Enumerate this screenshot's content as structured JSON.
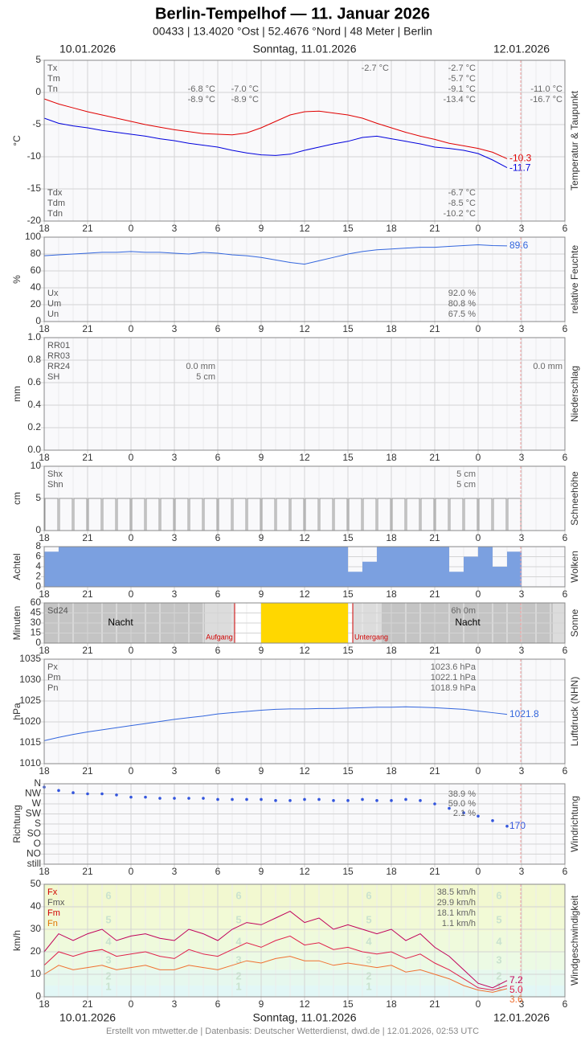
{
  "header": {
    "title": "Berlin-Tempelhof  —  11. Januar 2026",
    "subtitle": "00433  |  13.4020 °Ost  |  52.4676 °Nord  |  48 Meter  |  Berlin",
    "dates": [
      "10.01.2026",
      "Sonntag, 11.01.2026",
      "12.01.2026"
    ]
  },
  "footer": "Erstellt von mtwetter.de | Datenbasis: Deutscher Wetterdienst, dwd.de | 12.01.2026, 02:53 UTC",
  "x_axis": {
    "xlim": [
      0,
      36
    ],
    "xticks": [
      {
        "value": 0,
        "label": "18"
      },
      {
        "value": 3,
        "label": "21"
      },
      {
        "value": 6,
        "label": "0"
      },
      {
        "value": 9,
        "label": "3"
      },
      {
        "value": 12,
        "label": "6"
      },
      {
        "value": 15,
        "label": "9"
      },
      {
        "value": 18,
        "label": "12"
      },
      {
        "value": 21,
        "label": "15"
      },
      {
        "value": 24,
        "label": "18"
      },
      {
        "value": 27,
        "label": "21"
      },
      {
        "value": 30,
        "label": "0"
      },
      {
        "value": 33,
        "label": "3"
      },
      {
        "value": 36,
        "label": "6"
      }
    ]
  },
  "chart_data": [
    {
      "type": "line",
      "ylabel": "°C",
      "side_title": "Temperatur & Taupunkt",
      "ylim": [
        -20,
        5
      ],
      "yticks": [
        -20,
        -15,
        -10,
        -5,
        0,
        5
      ],
      "x": [
        0,
        1,
        2,
        3,
        4,
        5,
        6,
        7,
        8,
        9,
        10,
        11,
        12,
        13,
        14,
        15,
        16,
        17,
        18,
        19,
        20,
        21,
        22,
        23,
        24,
        25,
        26,
        27,
        28,
        29,
        30,
        31,
        32
      ],
      "series": [
        {
          "color": "#e00000",
          "values": [
            -1.0,
            -1.8,
            -2.4,
            -3.0,
            -3.5,
            -4.0,
            -4.5,
            -5.0,
            -5.4,
            -5.8,
            -6.1,
            -6.4,
            -6.5,
            -6.6,
            -6.3,
            -5.5,
            -4.5,
            -3.5,
            -3.0,
            -2.9,
            -3.2,
            -3.5,
            -4.0,
            -4.8,
            -5.5,
            -6.2,
            -6.8,
            -7.3,
            -7.9,
            -8.3,
            -8.7,
            -9.3,
            -10.3
          ]
        },
        {
          "color": "#0000dd",
          "values": [
            -4.0,
            -4.8,
            -5.2,
            -5.5,
            -5.9,
            -6.2,
            -6.5,
            -6.8,
            -7.2,
            -7.5,
            -7.9,
            -8.2,
            -8.5,
            -9.0,
            -9.4,
            -9.7,
            -9.8,
            -9.6,
            -9.0,
            -8.5,
            -8.0,
            -7.6,
            -7.0,
            -6.8,
            -7.2,
            -7.6,
            -8.0,
            -8.5,
            -8.7,
            -9.0,
            -9.5,
            -10.5,
            -11.7
          ]
        }
      ],
      "labels": [
        "Tx",
        "Tm",
        "Tn",
        "Tdx",
        "Tdm",
        "Tdn"
      ],
      "notes": [
        "-2.7 °C",
        "-2.7 °C",
        "-5.7 °C",
        "-6.8 °C",
        "-7.0 °C",
        "-9.1 °C",
        "-11.0 °C",
        "-8.9 °C",
        "-8.9 °C",
        "-13.4 °C",
        "-16.7 °C",
        "-6.7 °C",
        "-8.5 °C",
        "-10.2 °C"
      ]
    },
    {
      "type": "line",
      "ylabel": "%",
      "side_title": "relative Feuchte",
      "ylim": [
        0,
        100
      ],
      "yticks": [
        0,
        20,
        40,
        60,
        80,
        100
      ],
      "x": [
        0,
        1,
        2,
        3,
        4,
        5,
        6,
        7,
        8,
        9,
        10,
        11,
        12,
        13,
        14,
        15,
        16,
        17,
        18,
        19,
        20,
        21,
        22,
        23,
        24,
        25,
        26,
        27,
        28,
        29,
        30,
        31,
        32
      ],
      "series": [
        {
          "color": "#3366dd",
          "values": [
            78,
            79,
            80,
            81,
            82,
            82,
            83,
            82,
            82,
            81,
            80,
            82,
            81,
            79,
            78,
            76,
            73,
            70,
            68,
            72,
            76,
            80,
            83,
            85,
            86,
            87,
            88,
            88,
            89,
            90,
            91,
            90,
            89.6
          ]
        }
      ],
      "labels": [
        "Ux",
        "Um",
        "Un"
      ],
      "notes": [
        "92.0 %",
        "80.8 %",
        "67.5 %"
      ]
    },
    {
      "type": "bar",
      "ylabel": "mm",
      "side_title": "Niederschlag",
      "ylim": [
        0,
        1
      ],
      "yticks": [
        {
          "value": 0,
          "label": "0.0"
        },
        0.2,
        0.4,
        0.6,
        0.8,
        {
          "value": 1,
          "label": "1.0"
        }
      ],
      "labels": [
        "RR01",
        "RR03",
        "RR24",
        "SH"
      ],
      "notes": [
        "0.0 mm",
        "5 cm",
        "0.0 mm"
      ]
    },
    {
      "type": "bar",
      "ylabel": "cm",
      "side_title": "Schneehöhe",
      "ylim": [
        0,
        10
      ],
      "yticks": [
        0,
        5,
        10
      ],
      "x": [
        0,
        1,
        2,
        3,
        4,
        5,
        6,
        7,
        8,
        9,
        10,
        11,
        12,
        13,
        14,
        15,
        16,
        17,
        18,
        19,
        20,
        21,
        22,
        23,
        24,
        25,
        26,
        27,
        28,
        29,
        30,
        31,
        32
      ],
      "series": [
        {
          "color": "#999999",
          "values": [
            5,
            5,
            5,
            5,
            5,
            5,
            5,
            5,
            5,
            5,
            5,
            5,
            5,
            5,
            5,
            5,
            5,
            5,
            5,
            5,
            5,
            5,
            5,
            5,
            5,
            5,
            5,
            5,
            5,
            5,
            5,
            5,
            5
          ]
        }
      ],
      "labels": [
        "Shx",
        "Shn"
      ],
      "notes": [
        "5 cm",
        "5 cm"
      ]
    },
    {
      "type": "bar",
      "ylabel": "Achtel",
      "side_title": "Wolken",
      "ylim": [
        0,
        8
      ],
      "yticks": [
        0,
        2,
        4,
        6,
        8
      ],
      "x": [
        0,
        1,
        2,
        3,
        4,
        5,
        6,
        7,
        8,
        9,
        10,
        11,
        12,
        13,
        14,
        15,
        16,
        17,
        18,
        19,
        20,
        21,
        22,
        23,
        24,
        25,
        26,
        27,
        28,
        29,
        30,
        31,
        32
      ],
      "series": [
        {
          "color": "#7ba0e0",
          "values": [
            7,
            8,
            8,
            8,
            8,
            8,
            8,
            8,
            8,
            8,
            8,
            8,
            8,
            8,
            8,
            8,
            8,
            8,
            8,
            8,
            8,
            3,
            5,
            8,
            8,
            8,
            8,
            8,
            3,
            6,
            8,
            4,
            7
          ]
        }
      ]
    },
    {
      "type": "bar",
      "ylabel": "Minuten",
      "side_title": "Sonne",
      "ylim": [
        0,
        60
      ],
      "yticks": [
        0,
        15,
        30,
        45,
        60
      ],
      "x": [
        0,
        1,
        2,
        3,
        4,
        5,
        6,
        7,
        8,
        9,
        10,
        11,
        12,
        13,
        14,
        15,
        16,
        17,
        18,
        19,
        20,
        21,
        22,
        23,
        24,
        25,
        26,
        27,
        28,
        29,
        30,
        31,
        32
      ],
      "series": [
        {
          "color": "#ffd700",
          "values": [
            0,
            0,
            0,
            0,
            0,
            0,
            0,
            0,
            0,
            0,
            0,
            0,
            0,
            0,
            0,
            60,
            60,
            60,
            60,
            60,
            60,
            0,
            0,
            0,
            0,
            0,
            0,
            0,
            0,
            0,
            0,
            0,
            0
          ]
        }
      ],
      "labels": [
        "Sd24"
      ],
      "notes": [
        "6h 0m"
      ],
      "annotations": [
        "Nacht",
        "Aufgang",
        "Untergang",
        "Nacht"
      ]
    },
    {
      "type": "line",
      "ylabel": "hPa",
      "side_title": "Luftdruck (NHN)",
      "ylim": [
        1010,
        1035
      ],
      "yticks": [
        1010,
        1015,
        1020,
        1025,
        1030,
        1035
      ],
      "x": [
        0,
        1,
        2,
        3,
        4,
        5,
        6,
        7,
        8,
        9,
        10,
        11,
        12,
        13,
        14,
        15,
        16,
        17,
        18,
        19,
        20,
        21,
        22,
        23,
        24,
        25,
        26,
        27,
        28,
        29,
        30,
        31,
        32
      ],
      "series": [
        {
          "color": "#3366dd",
          "values": [
            1015.5,
            1016.3,
            1017,
            1017.6,
            1018.1,
            1018.6,
            1019.1,
            1019.6,
            1020.1,
            1020.6,
            1021,
            1021.4,
            1021.9,
            1022.2,
            1022.5,
            1022.8,
            1023,
            1023.1,
            1023.1,
            1023.2,
            1023.2,
            1023.3,
            1023.4,
            1023.5,
            1023.5,
            1023.6,
            1023.5,
            1023.4,
            1023.2,
            1023,
            1022.6,
            1022.2,
            1021.8
          ]
        }
      ],
      "labels": [
        "Px",
        "Pm",
        "Pn"
      ],
      "notes": [
        "1023.6 hPa",
        "1022.1 hPa",
        "1018.9 hPa"
      ]
    },
    {
      "type": "scatter",
      "ylabel": "Richtung",
      "side_title": "Windrichtung",
      "ylim": [
        0,
        360
      ],
      "yticks": [
        {
          "value": 0,
          "label": "still"
        },
        {
          "value": 45,
          "label": "NO"
        },
        {
          "value": 90,
          "label": "O"
        },
        {
          "value": 135,
          "label": "SO"
        },
        {
          "value": 180,
          "label": "S"
        },
        {
          "value": 225,
          "label": "SW"
        },
        {
          "value": 270,
          "label": "W"
        },
        {
          "value": 315,
          "label": "NW"
        },
        {
          "value": 360,
          "label": "N"
        }
      ],
      "x": [
        0,
        1,
        2,
        3,
        4,
        5,
        6,
        7,
        8,
        9,
        10,
        11,
        12,
        13,
        14,
        15,
        16,
        17,
        18,
        19,
        20,
        21,
        22,
        23,
        24,
        25,
        26,
        27,
        28,
        29,
        30,
        31,
        32
      ],
      "series": [
        {
          "color": "#3355dd",
          "values": [
            345,
            330,
            320,
            315,
            315,
            310,
            300,
            300,
            295,
            295,
            295,
            295,
            290,
            290,
            290,
            290,
            285,
            285,
            290,
            290,
            285,
            285,
            290,
            285,
            285,
            290,
            285,
            270,
            250,
            230,
            215,
            195,
            170
          ]
        }
      ],
      "notes": [
        "38.9 %",
        "59.0 %",
        "2.1 %"
      ]
    },
    {
      "type": "line",
      "ylabel": "km/h",
      "side_title": "Windgeschwindigkeit",
      "ylim": [
        0,
        50
      ],
      "yticks": [
        0,
        10,
        20,
        30,
        40,
        50
      ],
      "x": [
        0,
        1,
        2,
        3,
        4,
        5,
        6,
        7,
        8,
        9,
        10,
        11,
        12,
        13,
        14,
        15,
        16,
        17,
        18,
        19,
        20,
        21,
        22,
        23,
        24,
        25,
        26,
        27,
        28,
        29,
        30,
        31,
        32
      ],
      "series": [
        {
          "color": "#c0005a",
          "end_label": "7.2",
          "values": [
            20,
            28,
            25,
            28,
            30,
            25,
            27,
            28,
            26,
            25,
            30,
            28,
            25,
            30,
            33,
            32,
            35,
            38,
            33,
            35,
            30,
            32,
            30,
            28,
            30,
            25,
            28,
            22,
            18,
            12,
            6,
            4,
            7.2
          ]
        },
        {
          "color": "#e0204a",
          "end_label": "5.0",
          "values": [
            14,
            20,
            18,
            20,
            21,
            18,
            19,
            20,
            18,
            17,
            21,
            19,
            18,
            21,
            24,
            22,
            25,
            27,
            23,
            24,
            21,
            22,
            20,
            19,
            20,
            17,
            19,
            15,
            12,
            8,
            4,
            3,
            5.0
          ]
        },
        {
          "color": "#f07030",
          "end_label": "3.6",
          "values": [
            10,
            14,
            12,
            13,
            14,
            12,
            13,
            14,
            12,
            12,
            14,
            13,
            12,
            14,
            16,
            15,
            17,
            18,
            16,
            16,
            14,
            15,
            14,
            13,
            14,
            11,
            12,
            10,
            8,
            5,
            3,
            2,
            3.6
          ]
        }
      ],
      "labels": [
        "Fx",
        "Fmx",
        "Fm",
        "Fn"
      ],
      "notes": [
        "38.5 km/h",
        "29.9 km/h",
        "18.1 km/h",
        "1.1 km/h"
      ],
      "beaufort": [
        "1",
        "2",
        "3",
        "4",
        "5",
        "6"
      ]
    }
  ]
}
